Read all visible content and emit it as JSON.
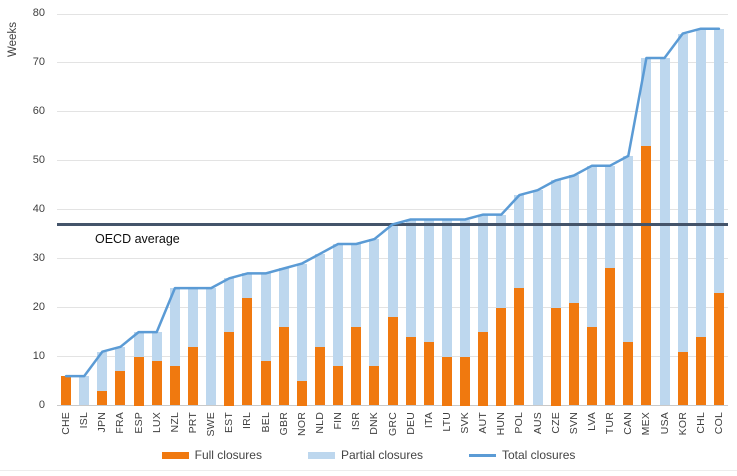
{
  "chart_data": {
    "type": "bar",
    "subtype": "stacked-bars-with-line",
    "title": "",
    "ylabel": "Weeks",
    "xlabel": "",
    "ylim": [
      0,
      80
    ],
    "yticks": [
      0,
      10,
      20,
      30,
      40,
      50,
      60,
      70,
      80
    ],
    "grid": "horizontal",
    "legend_position": "bottom",
    "categories": [
      "CHE",
      "ISL",
      "JPN",
      "FRA",
      "ESP",
      "LUX",
      "NZL",
      "PRT",
      "SWE",
      "EST",
      "IRL",
      "BEL",
      "GBR",
      "NOR",
      "NLD",
      "FIN",
      "ISR",
      "DNK",
      "GRC",
      "DEU",
      "ITA",
      "LTU",
      "SVK",
      "AUT",
      "HUN",
      "POL",
      "AUS",
      "CZE",
      "SVN",
      "LVA",
      "TUR",
      "CAN",
      "MEX",
      "USA",
      "KOR",
      "CHL",
      "COL"
    ],
    "series": [
      {
        "name": "Full closures",
        "type": "bar",
        "color": "#F0790F",
        "values": [
          6,
          0,
          3,
          7,
          10,
          9,
          8,
          12,
          0,
          15,
          22,
          9,
          16,
          5,
          12,
          8,
          16,
          8,
          18,
          14,
          13,
          10,
          10,
          15,
          20,
          24,
          0,
          20,
          21,
          16,
          28,
          13,
          53,
          0,
          11,
          14,
          23
        ]
      },
      {
        "name": "Partial closures",
        "type": "bar",
        "color": "#BDD7EE",
        "values": [
          0,
          6,
          8,
          5,
          5,
          6,
          16,
          12,
          24,
          11,
          5,
          18,
          12,
          24,
          19,
          25,
          17,
          26,
          19,
          24,
          25,
          28,
          28,
          24,
          19,
          19,
          44,
          26,
          26,
          33,
          21,
          38,
          18,
          71,
          65,
          63,
          54
        ]
      },
      {
        "name": "Total closures",
        "type": "line",
        "color": "#5B9BD5",
        "values": [
          6,
          6,
          11,
          12,
          15,
          15,
          24,
          24,
          24,
          26,
          27,
          27,
          28,
          29,
          31,
          33,
          33,
          34,
          37,
          38,
          38,
          38,
          38,
          39,
          39,
          43,
          44,
          46,
          47,
          49,
          49,
          51,
          71,
          71,
          76,
          77,
          77
        ]
      }
    ],
    "annotations": [
      {
        "label": "OECD average",
        "value": 37,
        "color": "#44546A"
      }
    ]
  }
}
